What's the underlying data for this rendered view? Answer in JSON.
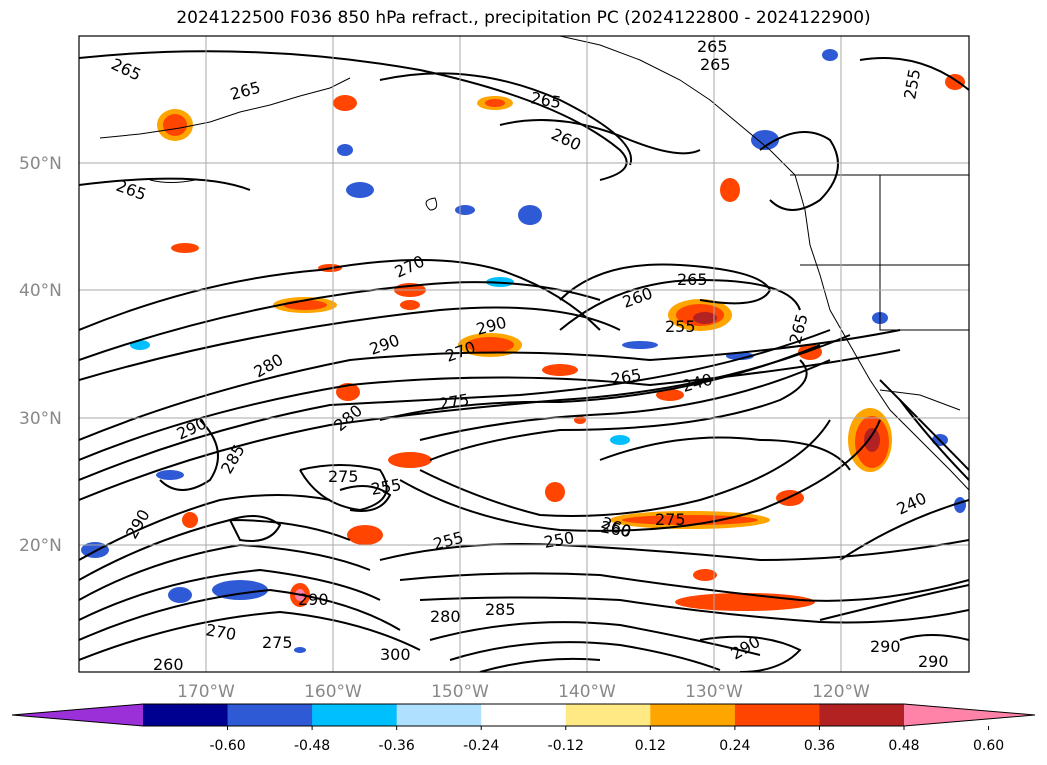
{
  "title": "2024122500 F036 850 hPa refract., precipitation PC (2024122800 - 2024122900)",
  "map": {
    "lat_labels": [
      "50°N",
      "40°N",
      "30°N",
      "20°N"
    ],
    "lon_labels": [
      "170°W",
      "160°W",
      "150°W",
      "140°W",
      "130°W",
      "120°W"
    ],
    "contour_labels": [
      "265",
      "265",
      "265",
      "265",
      "265",
      "265",
      "255",
      "260",
      "265",
      "270",
      "265",
      "260",
      "255",
      "290",
      "290",
      "280",
      "270",
      "275",
      "265",
      "240",
      "290",
      "285",
      "280",
      "275",
      "255",
      "250",
      "260",
      "275",
      "255",
      "260",
      "290",
      "270",
      "275",
      "280",
      "285",
      "290",
      "300",
      "260",
      "290",
      "240",
      "290",
      "290"
    ],
    "colors": {
      "ocean_bg": "#ffffff",
      "contour": "#000000",
      "coast": "#000000",
      "grid": "#aaaaaa"
    }
  },
  "colorbar": {
    "ticks": [
      "-0.60",
      "-0.48",
      "-0.36",
      "-0.24",
      "-0.12",
      "0.12",
      "0.24",
      "0.36",
      "0.48",
      "0.60"
    ],
    "colors": [
      "#9b30d9",
      "#000090",
      "#2e5ad6",
      "#00bfff",
      "#b0e0ff",
      "#ffffff",
      "#ffe985",
      "#ffa500",
      "#ff4500",
      "#b22222",
      "#ff82a8"
    ]
  }
}
